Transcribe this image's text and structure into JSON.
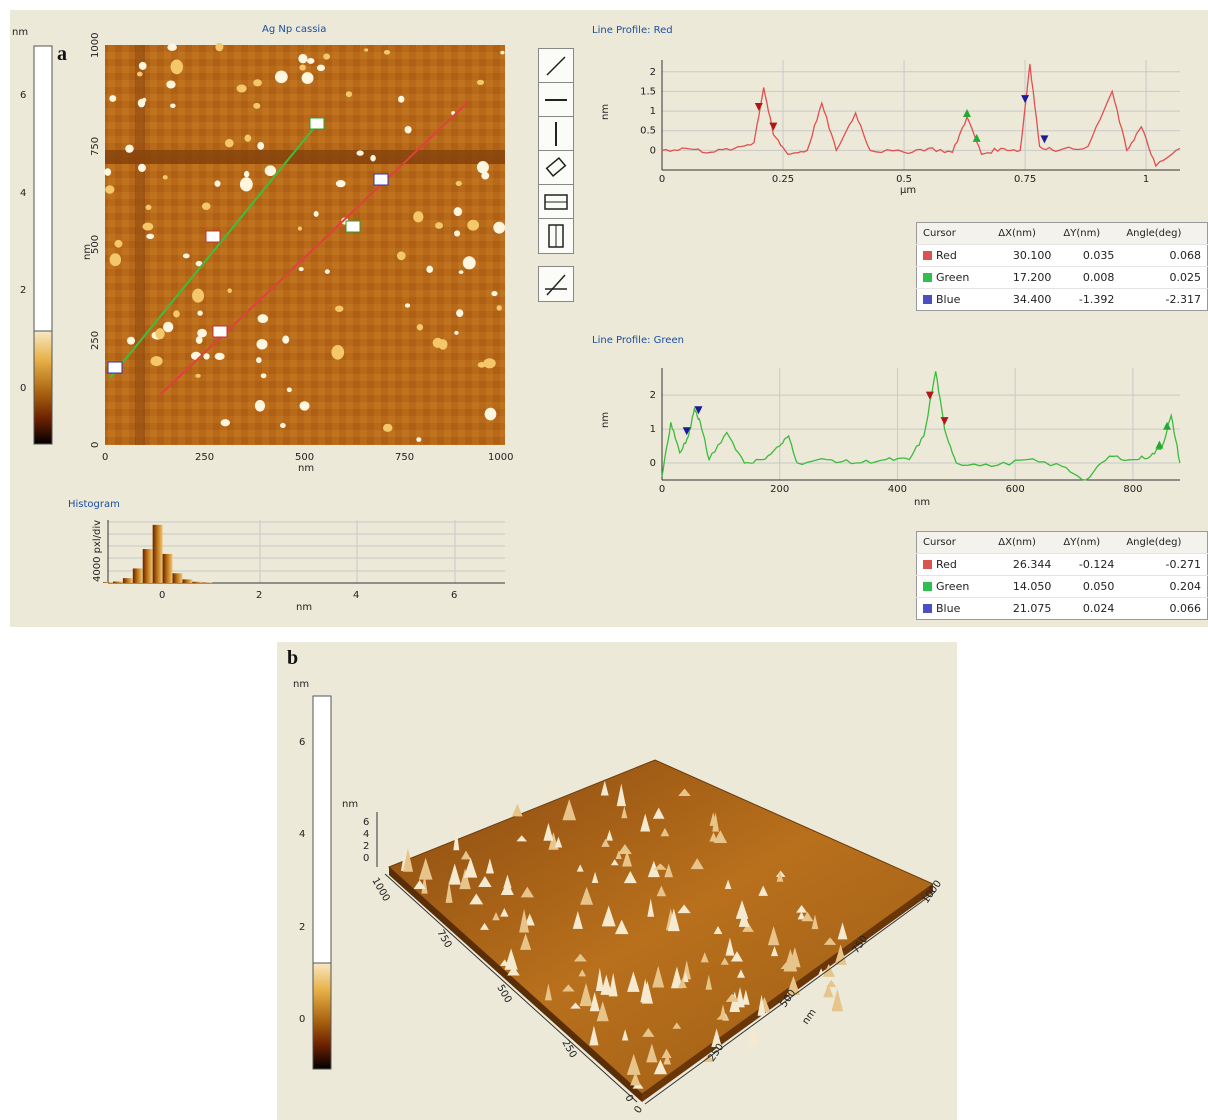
{
  "panel_a": {
    "label": "a",
    "image_title": "Ag Np cassia",
    "colorbar": {
      "unit": "nm",
      "ticks": [
        "6",
        "4",
        "2",
        "0"
      ]
    },
    "image_axes": {
      "y_unit": "nm",
      "y_ticks": [
        "1000",
        "750",
        "500",
        "250",
        "0"
      ],
      "x_ticks": [
        "0",
        "250",
        "500",
        "750",
        "1000"
      ],
      "x_unit": "nm"
    },
    "tools": [
      "line-tool-icon",
      "horizontal-line-tool-icon",
      "vertical-line-tool-icon",
      "rotated-rectangle-tool-icon",
      "horizontal-box-tool-icon",
      "vertical-box-tool-icon",
      "angle-tool-icon"
    ],
    "histogram": {
      "title": "Histogram",
      "y_label": "4000 pxl/div",
      "x_ticks": [
        "0",
        "2",
        "4",
        "6"
      ],
      "x_unit": "nm"
    }
  },
  "profile_red": {
    "title": "Line Profile: Red",
    "y_unit": "nm",
    "x_unit": "µm",
    "table": {
      "headers": [
        "Cursor",
        "ΔX(nm)",
        "ΔY(nm)",
        "Angle(deg)"
      ],
      "rows": [
        {
          "name": "Red",
          "color": "#d9534f",
          "dx": "30.100",
          "dy": "0.035",
          "angle": "0.068"
        },
        {
          "name": "Green",
          "color": "#2fbf4f",
          "dx": "17.200",
          "dy": "0.008",
          "angle": "0.025"
        },
        {
          "name": "Blue",
          "color": "#4b4fc2",
          "dx": "34.400",
          "dy": "-1.392",
          "angle": "-2.317"
        }
      ]
    }
  },
  "profile_green": {
    "title": "Line Profile: Green",
    "y_unit": "nm",
    "x_unit": "nm",
    "table": {
      "headers": [
        "Cursor",
        "ΔX(nm)",
        "ΔY(nm)",
        "Angle(deg)"
      ],
      "rows": [
        {
          "name": "Red",
          "color": "#d9534f",
          "dx": "26.344",
          "dy": "-0.124",
          "angle": "-0.271"
        },
        {
          "name": "Green",
          "color": "#2fbf4f",
          "dx": "14.050",
          "dy": "0.050",
          "angle": "0.204"
        },
        {
          "name": "Blue",
          "color": "#4b4fc2",
          "dx": "21.075",
          "dy": "0.024",
          "angle": "0.066"
        }
      ]
    }
  },
  "panel_b": {
    "label": "b",
    "colorbar": {
      "unit": "nm",
      "ticks": [
        "6",
        "4",
        "2",
        "0"
      ]
    },
    "z_unit": "nm",
    "z_ticks": [
      "6",
      "4",
      "2",
      "0"
    ],
    "left_axis_ticks": [
      "1000",
      "750",
      "500",
      "250",
      "0"
    ],
    "right_axis_ticks": [
      "0",
      "250",
      "500",
      "750",
      "1000"
    ],
    "right_axis_unit": "nm"
  },
  "chart_data": [
    {
      "type": "line",
      "title": "Line Profile: Red",
      "xlabel": "µm",
      "ylabel": "nm",
      "xlim": [
        0,
        1.07
      ],
      "ylim": [
        -0.5,
        2.3
      ],
      "x_ticks": [
        "0",
        "0.25",
        "0.5",
        "0.75",
        "1"
      ],
      "y_ticks": [
        "2",
        "1.5",
        "1",
        "0.5",
        "0"
      ],
      "series": [
        {
          "color": "#e05050",
          "x": [
            0,
            0.05,
            0.1,
            0.15,
            0.19,
            0.21,
            0.23,
            0.26,
            0.3,
            0.33,
            0.36,
            0.4,
            0.43,
            0.5,
            0.55,
            0.6,
            0.63,
            0.66,
            0.7,
            0.74,
            0.76,
            0.78,
            0.82,
            0.88,
            0.93,
            0.96,
            0.99,
            1.02,
            1.07
          ],
          "values": [
            0.0,
            0.05,
            -0.05,
            0.05,
            0.2,
            1.6,
            0.4,
            -0.1,
            0.0,
            1.2,
            0.0,
            0.95,
            0.0,
            -0.05,
            0.05,
            -0.05,
            0.85,
            -0.1,
            0.05,
            0.0,
            2.2,
            0.1,
            0.0,
            0.1,
            1.5,
            0.0,
            0.6,
            -0.4,
            0.05
          ]
        }
      ],
      "markers": [
        {
          "cursor": "Red",
          "x": [
            0.2,
            0.23
          ]
        },
        {
          "cursor": "Green",
          "x": [
            0.63,
            0.65
          ]
        },
        {
          "cursor": "Blue",
          "x": [
            0.75,
            0.79
          ]
        }
      ]
    },
    {
      "type": "line",
      "title": "Line Profile: Green",
      "xlabel": "nm",
      "ylabel": "nm",
      "xlim": [
        0,
        880
      ],
      "ylim": [
        -0.5,
        2.8
      ],
      "x_ticks": [
        "0",
        "200",
        "400",
        "600",
        "800"
      ],
      "y_ticks": [
        "2",
        "1",
        "0"
      ],
      "series": [
        {
          "color": "#3dbb3d",
          "x": [
            0,
            15,
            30,
            45,
            55,
            65,
            80,
            110,
            140,
            170,
            200,
            215,
            230,
            280,
            330,
            380,
            420,
            445,
            465,
            480,
            500,
            560,
            620,
            680,
            720,
            760,
            800,
            830,
            850,
            865,
            880
          ],
          "values": [
            -0.4,
            1.2,
            0.3,
            0.8,
            1.6,
            1.2,
            0.1,
            0.9,
            0.0,
            0.1,
            0.5,
            0.8,
            0.0,
            0.1,
            0.0,
            0.1,
            0.1,
            0.8,
            2.7,
            1.0,
            0.0,
            -0.1,
            0.1,
            -0.1,
            -0.5,
            0.2,
            0.1,
            0.2,
            0.5,
            1.4,
            0.0
          ]
        }
      ],
      "markers": [
        {
          "cursor": "Blue",
          "x": [
            42,
            62
          ]
        },
        {
          "cursor": "Red",
          "x": [
            455,
            480
          ]
        },
        {
          "cursor": "Green",
          "x": [
            845,
            858
          ]
        }
      ]
    },
    {
      "type": "bar",
      "title": "Histogram",
      "xlabel": "nm",
      "ylabel": "4000 pxl/div",
      "xlim": [
        -1,
        7
      ],
      "categories": [
        "-1.0",
        "-0.8",
        "-0.6",
        "-0.4",
        "-0.2",
        "0.0",
        "0.2",
        "0.4",
        "0.6",
        "0.8",
        "1.0"
      ],
      "values": [
        300,
        600,
        2000,
        6000,
        14000,
        24000,
        12000,
        4000,
        1500,
        500,
        200
      ]
    }
  ]
}
